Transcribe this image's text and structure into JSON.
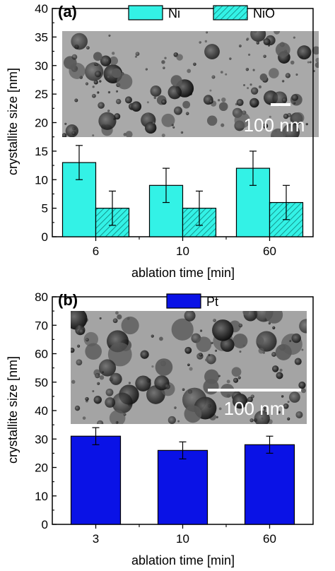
{
  "chart_data": [
    {
      "type": "bar",
      "panel_label": "(a)",
      "categories": [
        "6",
        "10",
        "60"
      ],
      "series": [
        {
          "name": "Ni",
          "values": [
            13,
            9,
            12
          ],
          "errors": [
            3,
            3,
            3
          ],
          "color": "#33f2e6",
          "pattern": "solid"
        },
        {
          "name": "NiO",
          "values": [
            5,
            5,
            6
          ],
          "errors": [
            3,
            3,
            3
          ],
          "color": "#33f2e6",
          "pattern": "hatched"
        }
      ],
      "xlabel": "ablation time [min]",
      "ylabel": "crystallite size [nm]",
      "ylim": [
        0,
        40
      ],
      "yticks": [
        0,
        5,
        10,
        15,
        20,
        25,
        30,
        35,
        40
      ],
      "legend": "top-center",
      "inset": {
        "kind": "TEM micrograph",
        "scale_bar": "100 nm"
      }
    },
    {
      "type": "bar",
      "panel_label": "(b)",
      "categories": [
        "3",
        "10",
        "60"
      ],
      "series": [
        {
          "name": "Pt",
          "values": [
            31,
            26,
            28
          ],
          "errors": [
            3,
            3,
            3
          ],
          "color": "#0a12e6",
          "pattern": "solid"
        }
      ],
      "xlabel": "ablation time [min]",
      "ylabel": "crystallite size [nm]",
      "ylim": [
        0,
        80
      ],
      "yticks": [
        0,
        10,
        20,
        30,
        40,
        50,
        60,
        70,
        80
      ],
      "legend": "top-center",
      "inset": {
        "kind": "TEM micrograph",
        "scale_bar": "100 nm"
      }
    }
  ]
}
